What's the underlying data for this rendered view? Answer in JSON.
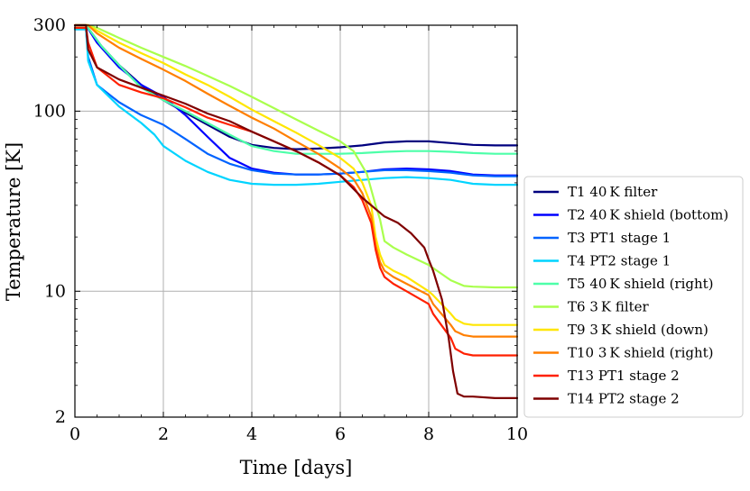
{
  "chart_data": {
    "type": "line",
    "title": "",
    "xlabel": "Time [days]",
    "ylabel": "Temperature [K]",
    "xlim": [
      0,
      10
    ],
    "ylim": [
      2,
      300
    ],
    "yscale": "log",
    "xticks": [
      "0",
      "2",
      "4",
      "6",
      "8",
      "10"
    ],
    "yticks": [
      "2",
      "10",
      "100",
      "300"
    ],
    "grid": true,
    "legend_position": "right",
    "series": [
      {
        "name": "T1 40 K filter",
        "color": "#00007f",
        "x": [
          0,
          0.25,
          0.6,
          1,
          1.5,
          2,
          2.5,
          3,
          3.5,
          4,
          4.5,
          5,
          5.5,
          6,
          6.5,
          7,
          7.5,
          8,
          8.5,
          9,
          9.5,
          10
        ],
        "y": [
          300,
          300,
          230,
          180,
          140,
          115,
          98,
          84,
          72,
          65,
          62.5,
          61.5,
          62,
          63,
          64.5,
          67,
          68,
          68,
          66.5,
          65,
          64.5,
          64.5
        ]
      },
      {
        "name": "T2 40 K shield (bottom)",
        "color": "#0000ff",
        "x": [
          0,
          0.25,
          0.5,
          1,
          1.5,
          2,
          2.5,
          3,
          3.5,
          4,
          4.5,
          5,
          5.5,
          6,
          6.5,
          7,
          7.5,
          8,
          8.5,
          9,
          9.5,
          10
        ],
        "y": [
          300,
          300,
          240,
          175,
          140,
          120,
          95,
          72,
          55,
          48,
          45.5,
          44.5,
          44.5,
          45,
          46,
          47.5,
          48,
          47.5,
          46.5,
          44.5,
          44,
          44
        ]
      },
      {
        "name": "T3 PT1 stage 1",
        "color": "#0063ff",
        "x": [
          0,
          0.25,
          0.3,
          0.5,
          1,
          1.5,
          2,
          2.5,
          3,
          3.5,
          4,
          4.5,
          5,
          5.5,
          6,
          6.5,
          7,
          7.5,
          8,
          8.5,
          9,
          9.5,
          10
        ],
        "y": [
          285,
          285,
          200,
          140,
          112,
          95,
          84,
          70,
          58,
          51,
          47,
          45,
          44.5,
          44.5,
          45,
          46,
          47,
          47,
          46.5,
          45.5,
          44,
          43.5,
          43.5
        ]
      },
      {
        "name": "T4 PT2 stage 1",
        "color": "#00d4ff",
        "x": [
          0,
          0.25,
          0.3,
          0.5,
          1,
          1.5,
          1.8,
          2,
          2.5,
          3,
          3.5,
          4,
          4.5,
          5,
          5.5,
          6,
          6.5,
          7,
          7.5,
          8,
          8.5,
          9,
          9.5,
          10
        ],
        "y": [
          285,
          285,
          190,
          140,
          106,
          86,
          74,
          64,
          53,
          46,
          41.5,
          39.5,
          39,
          39,
          39.5,
          40.5,
          41.5,
          42.5,
          43,
          42.5,
          41.5,
          39.5,
          39,
          39
        ]
      },
      {
        "name": "T5 40 K shield (right)",
        "color": "#4dffa9",
        "x": [
          0,
          0.25,
          0.6,
          1,
          1.5,
          2,
          2.5,
          3,
          3.5,
          4,
          4.5,
          5,
          5.5,
          6,
          6.5,
          7,
          7.5,
          8,
          8.5,
          9,
          9.5,
          10
        ],
        "y": [
          300,
          300,
          230,
          180,
          135,
          115,
          100,
          86,
          74,
          64,
          60,
          58,
          58,
          58,
          58.5,
          59.5,
          60,
          60,
          59.5,
          58.5,
          58,
          58
        ]
      },
      {
        "name": "T6 3 K filter",
        "color": "#a9ff4d",
        "x": [
          0,
          0.3,
          0.5,
          1,
          1.5,
          2,
          2.5,
          3,
          3.5,
          4,
          4.5,
          5,
          5.5,
          6,
          6.3,
          6.6,
          6.8,
          6.9,
          7,
          7.2,
          7.5,
          8,
          8.5,
          8.8,
          9,
          9.5,
          10
        ],
        "y": [
          300,
          300,
          290,
          255,
          225,
          200,
          178,
          157,
          138,
          120,
          104,
          90,
          78,
          68,
          60,
          45,
          30,
          25,
          19,
          17.5,
          16,
          14,
          11.5,
          10.7,
          10.6,
          10.5,
          10.5
        ]
      },
      {
        "name": "T9 3 K shield (down)",
        "color": "#ffe600",
        "x": [
          0,
          0.3,
          0.5,
          1,
          1.5,
          2,
          2.5,
          3,
          3.5,
          4,
          4.5,
          5,
          5.5,
          6,
          6.3,
          6.5,
          6.7,
          6.8,
          6.9,
          7,
          7.2,
          7.5,
          8,
          8.1,
          8.5,
          8.6,
          8.8,
          9,
          9.5,
          10
        ],
        "y": [
          300,
          300,
          280,
          240,
          210,
          185,
          160,
          140,
          120,
          102,
          88,
          76,
          65,
          55,
          48,
          40,
          30,
          20,
          16,
          14,
          13,
          12,
          10,
          9.5,
          7.5,
          7,
          6.6,
          6.5,
          6.5,
          6.5
        ]
      },
      {
        "name": "T10 3 K shield (right)",
        "color": "#ff7f00",
        "x": [
          0,
          0.3,
          0.5,
          1,
          1.5,
          2,
          2.5,
          3,
          3.5,
          4,
          4.5,
          5,
          5.5,
          6,
          6.3,
          6.5,
          6.7,
          6.8,
          6.9,
          7,
          7.2,
          7.5,
          8,
          8.1,
          8.5,
          8.6,
          8.8,
          9,
          9.5,
          10
        ],
        "y": [
          300,
          300,
          270,
          225,
          195,
          170,
          147,
          125,
          107,
          92,
          80,
          68,
          58,
          48,
          42,
          35,
          26,
          18,
          14.5,
          13,
          12,
          11,
          9.5,
          8.5,
          6.5,
          6,
          5.7,
          5.6,
          5.6,
          5.6
        ]
      },
      {
        "name": "T13 PT1 stage 2",
        "color": "#ff2000",
        "x": [
          0,
          0.25,
          0.3,
          0.5,
          1,
          1.5,
          2,
          2.5,
          3,
          3.5,
          4,
          4.5,
          5,
          5.5,
          6,
          6.3,
          6.5,
          6.7,
          6.8,
          6.9,
          7,
          7.2,
          7.5,
          8,
          8.1,
          8.5,
          8.6,
          8.8,
          9,
          9.5,
          10
        ],
        "y": [
          290,
          290,
          240,
          175,
          140,
          127,
          118,
          105,
          92,
          84,
          77,
          68,
          60,
          52,
          44,
          38,
          32,
          24,
          17,
          13.5,
          12,
          11,
          10,
          8.5,
          7.5,
          5.5,
          4.8,
          4.5,
          4.4,
          4.4,
          4.4
        ]
      },
      {
        "name": "T14 PT2 stage 2",
        "color": "#7f0000",
        "x": [
          0,
          0.25,
          0.3,
          0.5,
          1,
          1.5,
          2,
          2.5,
          3,
          3.5,
          4,
          4.5,
          5,
          5.5,
          6,
          6.5,
          7,
          7.3,
          7.6,
          7.9,
          8,
          8.1,
          8.3,
          8.45,
          8.55,
          8.65,
          8.8,
          9,
          9.5,
          10
        ],
        "y": [
          300,
          300,
          220,
          175,
          150,
          135,
          122,
          110,
          97,
          88,
          77,
          68,
          60,
          52,
          44,
          33,
          26,
          24,
          21,
          17.5,
          15,
          13,
          9,
          5.5,
          3.6,
          2.7,
          2.6,
          2.6,
          2.55,
          2.55
        ]
      }
    ]
  }
}
